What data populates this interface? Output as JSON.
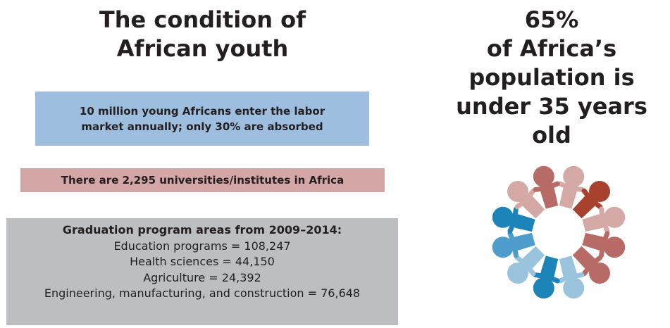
{
  "left": {
    "title_line1": "The condition of",
    "title_line2": "African youth",
    "labor_box": "10 million young Africans enter the labor market annually; only 30% are absorbed",
    "universities_box": "There are 2,295 universities/institutes in Africa",
    "graduation": {
      "heading": "Graduation program areas from 2009–2014:",
      "lines": [
        "Education programs = 108,247",
        "Health sciences = 44,150",
        "Agriculture = 24,392",
        "Engineering, manufacturing, and construction = 76,648"
      ]
    }
  },
  "right": {
    "stat_line1": "65%",
    "stat_line2": "of Africa’s",
    "stat_line3": "population is",
    "stat_line4": "under 35 years old"
  },
  "colors": {
    "labor_box": "#9ebedf",
    "universities_box": "#d5a6a6",
    "graduation_box": "#bdbec1",
    "figure_rust": "#a8412e",
    "figure_rose": "#b86b66",
    "figure_pink": "#d4a8a5",
    "figure_blue": "#1c84b8",
    "figure_midblue": "#4d9ccc",
    "figure_lightblue": "#9ac3de"
  },
  "illustration": {
    "icon": "people-circle-icon",
    "figure_count": 12
  }
}
